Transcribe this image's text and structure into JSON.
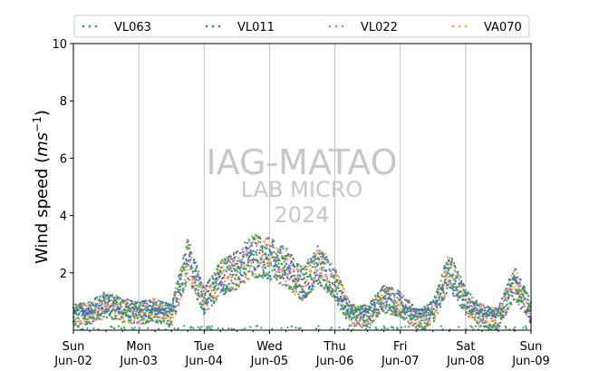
{
  "chart_data": {
    "type": "scatter",
    "title": "",
    "xlabel": "",
    "ylabel_main": "Wind speed (",
    "ylabel_unit": "ms",
    "ylabel_exp": "−1",
    "ylabel_close": ")",
    "ylim": [
      0,
      10
    ],
    "yticks": [
      "2",
      "4",
      "6",
      "8",
      "10"
    ],
    "xlim": [
      "2024-06-02",
      "2024-06-09"
    ],
    "xticks": [
      {
        "day": "Sun",
        "date": "Jun-02"
      },
      {
        "day": "Mon",
        "date": "Jun-03"
      },
      {
        "day": "Tue",
        "date": "Jun-04"
      },
      {
        "day": "Wed",
        "date": "Jun-05"
      },
      {
        "day": "Thu",
        "date": "Jun-06"
      },
      {
        "day": "Fri",
        "date": "Jun-07"
      },
      {
        "day": "Sat",
        "date": "Jun-08"
      },
      {
        "day": "Sun",
        "date": "Jun-09"
      }
    ],
    "grid": "vertical",
    "legend_position": "top",
    "series": [
      {
        "name": "VL063",
        "color": "#2ca25f"
      },
      {
        "name": "VL011",
        "color": "#3f6fb5"
      },
      {
        "name": "VL022",
        "color": "#c27fb5"
      },
      {
        "name": "VA070",
        "color": "#f5a623"
      }
    ],
    "profile": [
      [
        "2024-06-02T00:00",
        0.5
      ],
      [
        "2024-06-02T06:00",
        0.6
      ],
      [
        "2024-06-02T12:00",
        0.9
      ],
      [
        "2024-06-02T18:00",
        0.7
      ],
      [
        "2024-06-03T00:00",
        0.6
      ],
      [
        "2024-06-03T06:00",
        0.7
      ],
      [
        "2024-06-03T12:00",
        0.5
      ],
      [
        "2024-06-03T18:00",
        2.5
      ],
      [
        "2024-06-04T00:00",
        1.0
      ],
      [
        "2024-06-04T06:00",
        1.8
      ],
      [
        "2024-06-04T12:00",
        2.1
      ],
      [
        "2024-06-04T18:00",
        2.6
      ],
      [
        "2024-06-05T00:00",
        2.5
      ],
      [
        "2024-06-05T06:00",
        2.2
      ],
      [
        "2024-06-05T12:00",
        1.6
      ],
      [
        "2024-06-05T18:00",
        2.3
      ],
      [
        "2024-06-06T00:00",
        1.6
      ],
      [
        "2024-06-06T06:00",
        0.5
      ],
      [
        "2024-06-06T12:00",
        0.5
      ],
      [
        "2024-06-06T18:00",
        1.1
      ],
      [
        "2024-06-07T00:00",
        0.9
      ],
      [
        "2024-06-07T06:00",
        0.4
      ],
      [
        "2024-06-07T12:00",
        0.6
      ],
      [
        "2024-06-07T18:00",
        2.1
      ],
      [
        "2024-06-08T00:00",
        1.0
      ],
      [
        "2024-06-08T06:00",
        0.5
      ],
      [
        "2024-06-08T12:00",
        0.4
      ],
      [
        "2024-06-08T18:00",
        1.7
      ],
      [
        "2024-06-09T00:00",
        0.6
      ]
    ]
  },
  "watermark": {
    "line1": "IAG-MATAO",
    "line2": "LAB MICRO",
    "line3": "2024"
  }
}
